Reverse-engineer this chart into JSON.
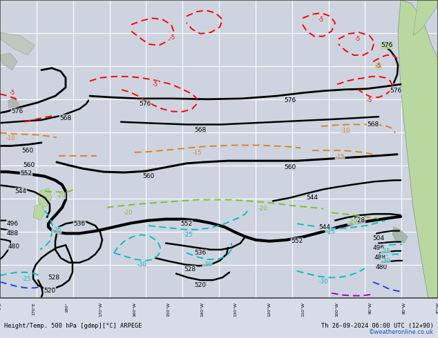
{
  "title_left": "Height/Temp. 500 hPa [gdmp][°C] ARPEGE",
  "title_right": "Th 26-09-2024 06:00 UTC (12+90)",
  "copyright": "©weatheronline.co.uk",
  "bg_color": "#d8dce8",
  "ocean_color": "#d0d4e0",
  "land_color_green": "#b8d8a0",
  "land_color_gray": "#b0b8b8",
  "grid_color": "#ffffff",
  "fig_width": 6.34,
  "fig_height": 4.9,
  "dpi": 100
}
